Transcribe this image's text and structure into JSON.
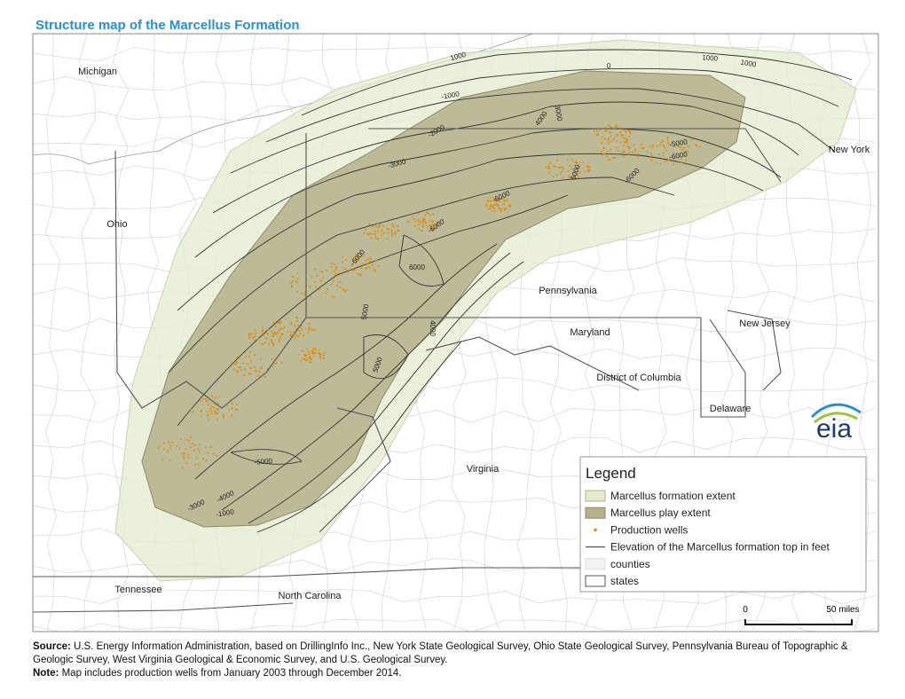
{
  "title": "Structure map of the Marcellus Formation",
  "map": {
    "places": [
      "Michigan",
      "New York",
      "Ohio",
      "Pennsylvania",
      "New Jersey",
      "Maryland",
      "District of Columbia",
      "Delaware",
      "Virginia",
      "Tennessee",
      "North Carolina"
    ],
    "contour_labels": [
      "1000",
      "0",
      "1000",
      "1000",
      "-1000",
      "-2000",
      "-3000",
      "4000",
      "3000",
      "-5000",
      "-6000",
      "5000",
      "-6000",
      "-6000",
      "-6000",
      "-6000",
      "6000",
      "5000",
      "4000",
      "5000",
      "-5000",
      "-4000",
      "-3000",
      "-1000"
    ],
    "legend": {
      "title": "Legend",
      "items": [
        "Marcellus formation extent",
        "Marcellus  play extent",
        "Production wells",
        "Elevation of the Marcellus formation top in feet",
        "counties",
        "states"
      ]
    },
    "scale": {
      "start": "0",
      "end": "50 miles"
    },
    "logo": "eia"
  },
  "source": {
    "label": "Source:",
    "text": "U.S. Energy Information Administration, based on DrillingInfo Inc., New York State Geological Survey, Ohio State Geological Survey, Pennsylvania Bureau of Topographic & Geologic Survey, West Virginia Geological & Economic Survey, and U.S. Geological Survey."
  },
  "note": {
    "label": "Note:",
    "text": "Map includes production wells from January 2003 through December 2014."
  }
}
